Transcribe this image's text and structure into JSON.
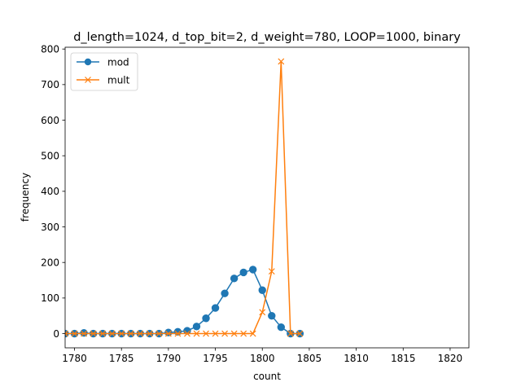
{
  "chart_data": {
    "type": "line",
    "title": "d_length=1024, d_top_bit=2, d_weight=780, LOOP=1000, binary",
    "xlabel": "count",
    "ylabel": "frequency",
    "xlim": [
      1779,
      1822
    ],
    "ylim": [
      -40,
      805
    ],
    "xticks": [
      1780,
      1785,
      1790,
      1795,
      1800,
      1805,
      1810,
      1815,
      1820
    ],
    "yticks": [
      0,
      100,
      200,
      300,
      400,
      500,
      600,
      700,
      800
    ],
    "grid": false,
    "legend_position": "top-left",
    "series": [
      {
        "name": "mod",
        "color": "#1f77b4",
        "marker": "circle",
        "x": [
          1779,
          1780,
          1781,
          1782,
          1783,
          1784,
          1785,
          1786,
          1787,
          1788,
          1789,
          1790,
          1791,
          1792,
          1793,
          1794,
          1795,
          1796,
          1797,
          1798,
          1799,
          1800,
          1801,
          1802,
          1803,
          1804
        ],
        "y": [
          0,
          0,
          2,
          0,
          0,
          0,
          0,
          0,
          0,
          0,
          0,
          3,
          5,
          8,
          20,
          43,
          72,
          113,
          155,
          172,
          180,
          122,
          50,
          18,
          0,
          0
        ]
      },
      {
        "name": "mult",
        "color": "#ff7f0e",
        "marker": "x",
        "x": [
          1779,
          1780,
          1781,
          1782,
          1783,
          1784,
          1785,
          1786,
          1787,
          1788,
          1789,
          1790,
          1791,
          1792,
          1793,
          1794,
          1795,
          1796,
          1797,
          1798,
          1799,
          1800,
          1801,
          1802,
          1803,
          1804
        ],
        "y": [
          0,
          0,
          0,
          0,
          0,
          0,
          0,
          0,
          0,
          0,
          0,
          0,
          0,
          0,
          0,
          0,
          0,
          0,
          0,
          0,
          0,
          60,
          175,
          765,
          0,
          0
        ]
      }
    ]
  }
}
